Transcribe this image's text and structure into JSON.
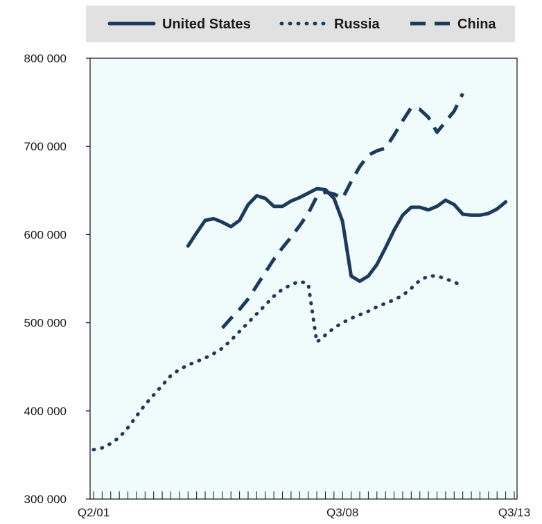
{
  "chart_data": {
    "type": "line",
    "title": "",
    "xlabel": "",
    "ylabel": "",
    "x_tick_labels": [
      {
        "label": "Q2/01",
        "index": 0
      },
      {
        "label": "Q3/08",
        "index": 29
      },
      {
        "label": "Q3/13",
        "index": 49
      }
    ],
    "x_count": 50,
    "ylim": [
      300000,
      800000
    ],
    "yticks": [
      {
        "value": 300000,
        "label": "300 000"
      },
      {
        "value": 400000,
        "label": "400 000"
      },
      {
        "value": 500000,
        "label": "500 000"
      },
      {
        "value": 600000,
        "label": "600 000"
      },
      {
        "value": 700000,
        "label": "700 000"
      },
      {
        "value": 800000,
        "label": "800 000"
      }
    ],
    "grid": false,
    "legend_position": "top",
    "plot_background": "#f0fbfc",
    "series": [
      {
        "name": "United States",
        "style": "solid",
        "color": "#1b3a5c",
        "start_index": 11,
        "values": [
          587000,
          602000,
          616000,
          618000,
          614000,
          609000,
          616000,
          634000,
          644000,
          641000,
          632000,
          632000,
          638000,
          642000,
          647000,
          652000,
          651000,
          641000,
          615000,
          553000,
          547000,
          553000,
          566000,
          585000,
          605000,
          622000,
          631000,
          631000,
          628000,
          632000,
          639000,
          634000,
          623000,
          622000,
          622000,
          624000,
          629000,
          637000
        ]
      },
      {
        "name": "Russia",
        "style": "dotted",
        "color": "#1b3a5c",
        "start_index": 0,
        "values": [
          356000,
          358000,
          363000,
          370000,
          381000,
          394000,
          407000,
          418000,
          429000,
          440000,
          447000,
          452000,
          456000,
          460000,
          465000,
          471000,
          480000,
          490000,
          500000,
          510000,
          520000,
          530000,
          538000,
          543000,
          547000,
          544000,
          478000,
          486000,
          494000,
          500000,
          505000,
          509000,
          513000,
          518000,
          522000,
          526000,
          531000,
          539000,
          548000,
          553000,
          553000,
          550000,
          546000,
          542000
        ]
      },
      {
        "name": "China",
        "style": "dashed",
        "color": "#1b3a5c",
        "start_index": 15,
        "values": [
          494000,
          505000,
          515000,
          527000,
          542000,
          557000,
          572000,
          585000,
          597000,
          610000,
          624000,
          643000,
          648000,
          646000,
          641000,
          660000,
          677000,
          690000,
          695000,
          698000,
          713000,
          729000,
          744000,
          742000,
          733000,
          716000,
          728000,
          740000,
          760000
        ]
      }
    ]
  }
}
